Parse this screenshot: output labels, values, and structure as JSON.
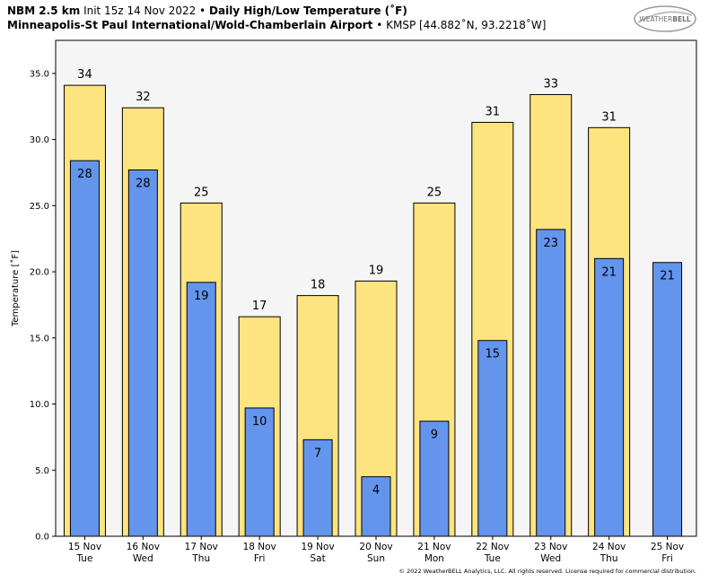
{
  "header": {
    "line1": {
      "model": "NBM 2.5 km",
      "init": "Init 15z 14 Nov 2022",
      "separator": "•",
      "product": "Daily High/Low Temperature (˚F)"
    },
    "line2": {
      "station": "Minneapolis-St Paul International/Wold-Chamberlain Airport",
      "separator": "•",
      "location": "KMSP [44.882˚N, 93.2218˚W]"
    }
  },
  "logo": {
    "text_main": "WEATHER",
    "text_bold": "BELL",
    "icon": "cloud-swirl-logo"
  },
  "copyright": "© 2022 WeatherBELL Analytics, LLC. All rights reserved. License required for commercial distribution.",
  "colors": {
    "high": "#fde47f",
    "low": "#6495ed",
    "plot_bg": "#f5f5f5",
    "edge": "#000000"
  },
  "chart_data": {
    "type": "bar",
    "ylabel": "Temperature [˚F]",
    "ylim": [
      0,
      37.5
    ],
    "yticks": [
      0,
      5,
      10,
      15,
      20,
      25,
      30,
      35
    ],
    "ytick_labels": [
      "0.0",
      "5.0",
      "10.0",
      "15.0",
      "20.0",
      "25.0",
      "30.0",
      "35.0"
    ],
    "grid": false,
    "categories": [
      {
        "date": "15 Nov",
        "day": "Tue"
      },
      {
        "date": "16 Nov",
        "day": "Wed"
      },
      {
        "date": "17 Nov",
        "day": "Thu"
      },
      {
        "date": "18 Nov",
        "day": "Fri"
      },
      {
        "date": "19 Nov",
        "day": "Sat"
      },
      {
        "date": "20 Nov",
        "day": "Sun"
      },
      {
        "date": "21 Nov",
        "day": "Mon"
      },
      {
        "date": "22 Nov",
        "day": "Tue"
      },
      {
        "date": "23 Nov",
        "day": "Wed"
      },
      {
        "date": "24 Nov",
        "day": "Thu"
      },
      {
        "date": "25 Nov",
        "day": "Fri"
      }
    ],
    "series": [
      {
        "key": "high",
        "values": [
          34.1,
          32.4,
          25.2,
          16.6,
          18.2,
          19.3,
          25.2,
          31.3,
          33.4,
          30.9,
          null
        ],
        "labels": [
          "34",
          "32",
          "25",
          "17",
          "18",
          "19",
          "25",
          "31",
          "33",
          "31",
          ""
        ]
      },
      {
        "key": "low",
        "values": [
          28.4,
          27.7,
          19.2,
          9.7,
          7.3,
          4.5,
          8.7,
          14.8,
          23.2,
          21.0,
          20.7
        ],
        "labels": [
          "28",
          "28",
          "19",
          "10",
          "7",
          "4",
          "9",
          "15",
          "23",
          "21",
          "21"
        ]
      }
    ]
  }
}
